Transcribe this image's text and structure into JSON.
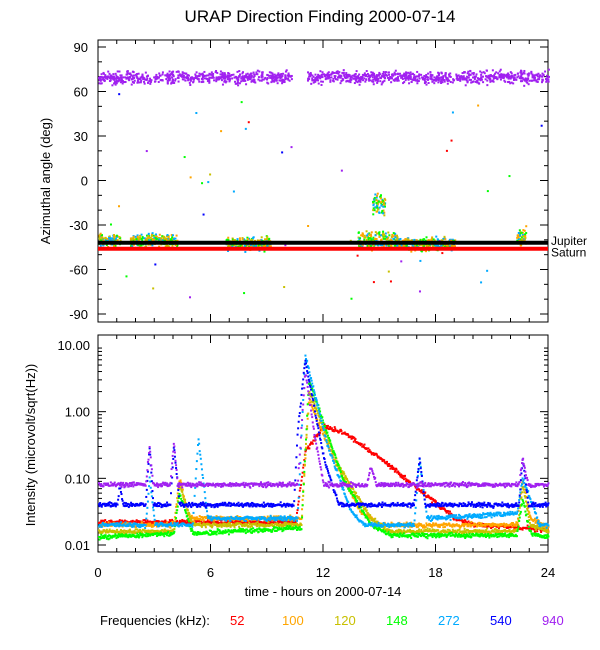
{
  "chart_data": [
    {
      "type": "scatter",
      "title": "URAP Direction Finding  2000-07-14",
      "ylabel": "Azimuthal angle (deg)",
      "ylim": [
        -90,
        90
      ],
      "yticks": [
        "90",
        "60",
        "30",
        "0",
        "-30",
        "-60",
        "-90"
      ],
      "xlim": [
        0,
        24
      ],
      "reference_lines": [
        {
          "name": "Jupiter",
          "value": -42,
          "color": "#000000"
        },
        {
          "name": "Saturn",
          "value": -46,
          "color": "#ff0000"
        }
      ],
      "clusters": [
        {
          "frequency": "940",
          "t": [
            0,
            24
          ],
          "center": 70,
          "spread": 6,
          "gap": [
            10.3,
            11.1
          ]
        },
        {
          "frequency": "mixed",
          "t": [
            0,
            1.2
          ],
          "center": -40,
          "spread": 6
        },
        {
          "frequency": "mixed",
          "t": [
            1.7,
            4.2
          ],
          "center": -40,
          "spread": 6
        },
        {
          "frequency": "mixed",
          "t": [
            6.8,
            9.2
          ],
          "center": -42,
          "spread": 6
        },
        {
          "frequency": "mixed",
          "t": [
            13.8,
            16.0
          ],
          "center": -40,
          "spread": 8
        },
        {
          "frequency": "mixed",
          "t": [
            14.6,
            15.3
          ],
          "center": -15,
          "spread": 10
        },
        {
          "frequency": "mixed",
          "t": [
            16.0,
            19.0
          ],
          "center": -42,
          "spread": 6
        },
        {
          "frequency": "mixed",
          "t": [
            22.3,
            22.8
          ],
          "center": -38,
          "spread": 8
        }
      ]
    },
    {
      "type": "scatter",
      "ylabel": "Intensity (microvolt/sqrt(Hz))",
      "yscale": "log",
      "ylim": [
        0.01,
        10
      ],
      "yticks": [
        "10.00",
        "1.00",
        "0.10",
        "0.01"
      ],
      "xlabel": "time - hours on 2000-07-14",
      "xticks": [
        "0",
        "6",
        "12",
        "18",
        "24"
      ],
      "xlim": [
        0,
        24
      ],
      "legend_title": "Frequencies (kHz):",
      "series": [
        {
          "name": "52",
          "color": "#ff0000",
          "points": [
            [
              0,
              0.022
            ],
            [
              10.5,
              0.022
            ],
            [
              11,
              0.25
            ],
            [
              12,
              0.6
            ],
            [
              13,
              0.5
            ],
            [
              15,
              0.2
            ],
            [
              17,
              0.07
            ],
            [
              19,
              0.025
            ],
            [
              20,
              0.02
            ],
            [
              24,
              0.017
            ]
          ]
        },
        {
          "name": "100",
          "color": "#ffa500",
          "points": [
            [
              0,
              0.02
            ],
            [
              4,
              0.02
            ],
            [
              4.3,
              0.1
            ],
            [
              4.8,
              0.025
            ],
            [
              10.8,
              0.025
            ],
            [
              11.2,
              1.5
            ],
            [
              12.5,
              0.2
            ],
            [
              14,
              0.03
            ],
            [
              15,
              0.02
            ],
            [
              22.3,
              0.02
            ],
            [
              22.6,
              0.1
            ],
            [
              23,
              0.025
            ],
            [
              24,
              0.018
            ]
          ]
        },
        {
          "name": "120",
          "color": "#c8c000",
          "points": [
            [
              0,
              0.016
            ],
            [
              4,
              0.016
            ],
            [
              4.3,
              0.08
            ],
            [
              5,
              0.02
            ],
            [
              10.8,
              0.02
            ],
            [
              11.2,
              2
            ],
            [
              12.8,
              0.15
            ],
            [
              14.5,
              0.025
            ],
            [
              15.5,
              0.016
            ],
            [
              22.3,
              0.016
            ],
            [
              22.6,
              0.08
            ],
            [
              23,
              0.02
            ],
            [
              24,
              0.016
            ]
          ]
        },
        {
          "name": "148",
          "color": "#00ff00",
          "points": [
            [
              0,
              0.013
            ],
            [
              4,
              0.015
            ],
            [
              4.3,
              0.06
            ],
            [
              5,
              0.015
            ],
            [
              10.8,
              0.018
            ],
            [
              11.2,
              3
            ],
            [
              13,
              0.1
            ],
            [
              14.5,
              0.02
            ],
            [
              15.5,
              0.014
            ],
            [
              22.3,
              0.014
            ],
            [
              22.6,
              0.05
            ],
            [
              23,
              0.015
            ],
            [
              24,
              0.013
            ]
          ]
        },
        {
          "name": "272",
          "color": "#00aaff",
          "points": [
            [
              0,
              0.02
            ],
            [
              2.5,
              0.02
            ],
            [
              2.7,
              0.1
            ],
            [
              3,
              0.02
            ],
            [
              5,
              0.02
            ],
            [
              5.3,
              0.4
            ],
            [
              5.8,
              0.025
            ],
            [
              10.6,
              0.025
            ],
            [
              11,
              7
            ],
            [
              12.2,
              0.3
            ],
            [
              13.5,
              0.03
            ],
            [
              14.2,
              0.02
            ],
            [
              16.8,
              0.02
            ],
            [
              17.1,
              0.2
            ],
            [
              17.5,
              0.025
            ],
            [
              22.3,
              0.03
            ],
            [
              22.6,
              0.1
            ],
            [
              23.5,
              0.02
            ],
            [
              24,
              0.02
            ]
          ]
        },
        {
          "name": "540",
          "color": "#0000ff",
          "points": [
            [
              0,
              0.04
            ],
            [
              1,
              0.04
            ],
            [
              1.1,
              0.08
            ],
            [
              1.3,
              0.04
            ],
            [
              2.5,
              0.04
            ],
            [
              2.7,
              0.3
            ],
            [
              2.9,
              0.04
            ],
            [
              3.8,
              0.04
            ],
            [
              4,
              0.3
            ],
            [
              4.3,
              0.04
            ],
            [
              10.4,
              0.04
            ],
            [
              10.6,
              0.5
            ],
            [
              11,
              6
            ],
            [
              12,
              0.2
            ],
            [
              12.8,
              0.04
            ],
            [
              16.8,
              0.04
            ],
            [
              17.1,
              0.2
            ],
            [
              17.4,
              0.04
            ],
            [
              22.4,
              0.04
            ],
            [
              22.6,
              0.2
            ],
            [
              22.9,
              0.04
            ],
            [
              24,
              0.04
            ]
          ]
        },
        {
          "name": "940",
          "color": "#a020f0",
          "points": [
            [
              0,
              0.08
            ],
            [
              2.5,
              0.08
            ],
            [
              2.7,
              0.3
            ],
            [
              2.9,
              0.08
            ],
            [
              3.8,
              0.08
            ],
            [
              4,
              0.35
            ],
            [
              4.2,
              0.08
            ],
            [
              10.6,
              0.08
            ],
            [
              11,
              4
            ],
            [
              11.6,
              0.3
            ],
            [
              12,
              0.08
            ],
            [
              14.3,
              0.08
            ],
            [
              14.5,
              0.15
            ],
            [
              14.8,
              0.08
            ],
            [
              22.4,
              0.08
            ],
            [
              22.6,
              0.2
            ],
            [
              22.9,
              0.08
            ],
            [
              24,
              0.08
            ]
          ]
        }
      ]
    }
  ]
}
